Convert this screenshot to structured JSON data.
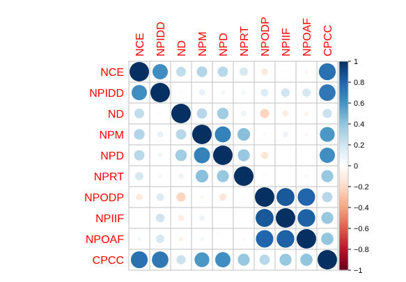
{
  "chart_data": {
    "type": "heatmap",
    "subtype": "correlation-circles",
    "variables": [
      "NCE",
      "NPIDD",
      "ND",
      "NPM",
      "NPD",
      "NPRT",
      "NPODP",
      "NPIIF",
      "NPOAF",
      "CPCC"
    ],
    "matrix": [
      [
        1.0,
        0.62,
        0.25,
        0.3,
        0.28,
        0.18,
        -0.12,
        0.02,
        0.05,
        0.75
      ],
      [
        0.62,
        1.0,
        0.02,
        0.1,
        0.06,
        0.05,
        0.15,
        0.2,
        0.18,
        0.72
      ],
      [
        0.25,
        0.02,
        1.0,
        0.28,
        0.35,
        0.08,
        -0.22,
        -0.1,
        -0.06,
        0.22
      ],
      [
        0.3,
        0.1,
        0.28,
        1.0,
        0.68,
        0.42,
        -0.04,
        0.08,
        0.05,
        0.58
      ],
      [
        0.28,
        0.06,
        0.35,
        0.68,
        1.0,
        0.38,
        -0.14,
        0.0,
        0.02,
        0.62
      ],
      [
        0.18,
        0.05,
        0.08,
        0.42,
        0.38,
        1.0,
        -0.02,
        0.0,
        0.04,
        0.38
      ],
      [
        -0.12,
        0.15,
        -0.22,
        -0.04,
        -0.14,
        -0.02,
        1.0,
        0.85,
        0.8,
        0.28
      ],
      [
        0.02,
        0.2,
        -0.1,
        0.08,
        0.0,
        0.0,
        0.85,
        1.0,
        0.82,
        0.38
      ],
      [
        0.05,
        0.18,
        -0.06,
        0.05,
        0.02,
        0.04,
        0.8,
        0.82,
        1.0,
        0.4
      ],
      [
        0.75,
        0.72,
        0.22,
        0.58,
        0.62,
        0.38,
        0.28,
        0.38,
        0.4,
        1.0
      ]
    ],
    "colorbar": {
      "ticks": [
        "1",
        "0.8",
        "0.6",
        "0.4",
        "0.2",
        "0",
        "−0.2",
        "−0.4",
        "−0.6",
        "−0.8",
        "−1"
      ],
      "range": [
        -1,
        1
      ]
    },
    "label_color": "#ff0000",
    "palette": [
      "#67001f",
      "#b2182b",
      "#d6604d",
      "#f4a582",
      "#fddbc7",
      "#ffffff",
      "#d1e5f0",
      "#92c5de",
      "#4393c3",
      "#2166ac",
      "#053061"
    ],
    "grid": true
  }
}
